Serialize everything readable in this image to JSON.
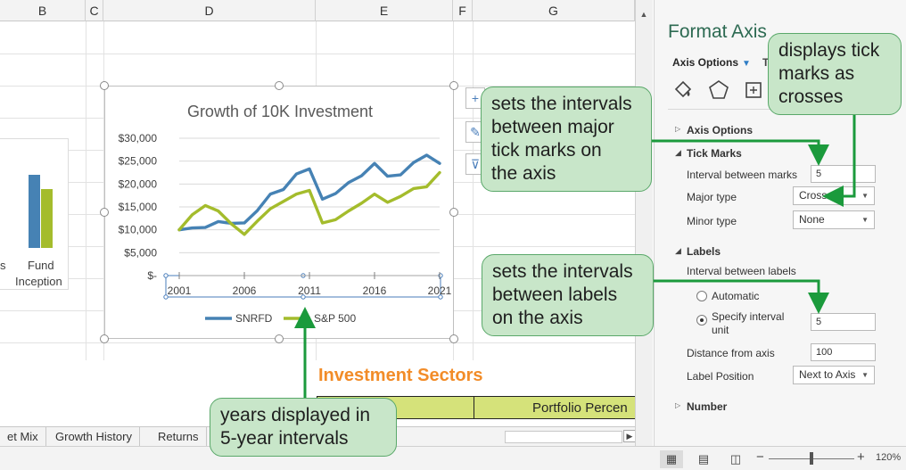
{
  "columns": [
    {
      "label": "B"
    },
    {
      "label": "C"
    },
    {
      "label": "D"
    },
    {
      "label": "E"
    },
    {
      "label": "F"
    },
    {
      "label": "G"
    }
  ],
  "mini_chart": {
    "left_label": "s",
    "label_line1": "Fund",
    "label_line2": "Inception",
    "bar_colors": [
      "#4682b4",
      "#a4bc2c"
    ]
  },
  "chart_data": {
    "type": "line",
    "title": "Growth of 10K Investment",
    "x": [
      2001,
      2002,
      2003,
      2004,
      2005,
      2006,
      2007,
      2008,
      2009,
      2010,
      2011,
      2012,
      2013,
      2014,
      2015,
      2016,
      2017,
      2018,
      2019,
      2020,
      2021
    ],
    "x_tick_labels": [
      "2001",
      "2006",
      "2011",
      "2016",
      "2021"
    ],
    "y_tick_labels": [
      "$30,000",
      "$25,000",
      "$20,000",
      "$15,000",
      "$10,000",
      "$5,000",
      "$-"
    ],
    "ylim": [
      0,
      30000
    ],
    "series": [
      {
        "name": "SNRFD",
        "color": "#4682b4",
        "values": [
          10000,
          10400,
          10500,
          11800,
          11400,
          11500,
          14200,
          17800,
          18800,
          22200,
          23300,
          16700,
          17900,
          20300,
          21800,
          24500,
          21700,
          22000,
          24700,
          26300,
          24500
        ]
      },
      {
        "name": "S&P 500",
        "color": "#a4bc2c",
        "values": [
          10000,
          13300,
          15300,
          14100,
          11300,
          9000,
          11900,
          14600,
          16200,
          17800,
          18600,
          11500,
          12200,
          14100,
          15800,
          17800,
          16000,
          17300,
          19000,
          19400,
          22500
        ]
      }
    ],
    "legend_position": "bottom",
    "grid": true
  },
  "side_buttons": [
    {
      "icon": "+"
    },
    {
      "icon": "✎"
    },
    {
      "icon": "⊽"
    }
  ],
  "sectors": {
    "title": "Investment Sectors",
    "header_right": "Portfolio Percen"
  },
  "tabs": [
    {
      "label": "et Mix"
    },
    {
      "label": "Growth History"
    },
    {
      "label": "Returns"
    }
  ],
  "pane": {
    "title": "Format Axis",
    "axis_options_tab": "Axis Options",
    "extra_tab": "T",
    "sections": {
      "axis_options": "Axis Options",
      "tick_marks": "Tick Marks",
      "labels": "Labels",
      "number": "Number"
    },
    "interval_between_marks_label": "Interval between marks",
    "interval_between_marks_value": "5",
    "major_type_label": "Major type",
    "major_type_value": "Cross",
    "minor_type_label": "Minor type",
    "minor_type_value": "None",
    "interval_between_labels_label": "Interval between labels",
    "automatic_label": "Automatic",
    "specify_label_line1": "Specify interval",
    "specify_label_line2": "unit",
    "specify_value": "5",
    "distance_label": "Distance from axis",
    "distance_value": "100",
    "label_position_label": "Label Position",
    "label_position_value": "Next to Axis"
  },
  "status": {
    "zoom_minus": "−",
    "zoom_plus": "+",
    "zoom_level": "120%"
  },
  "callouts": {
    "crosses": [
      "displays tick",
      "marks as",
      "crosses"
    ],
    "major": [
      "sets the intervals",
      "between major",
      "tick marks on",
      "the axis"
    ],
    "labels": [
      "sets the intervals",
      "between labels",
      "on the axis"
    ],
    "years": [
      "years displayed in",
      "5-year intervals"
    ]
  },
  "accent_color": "#1b9a3c"
}
